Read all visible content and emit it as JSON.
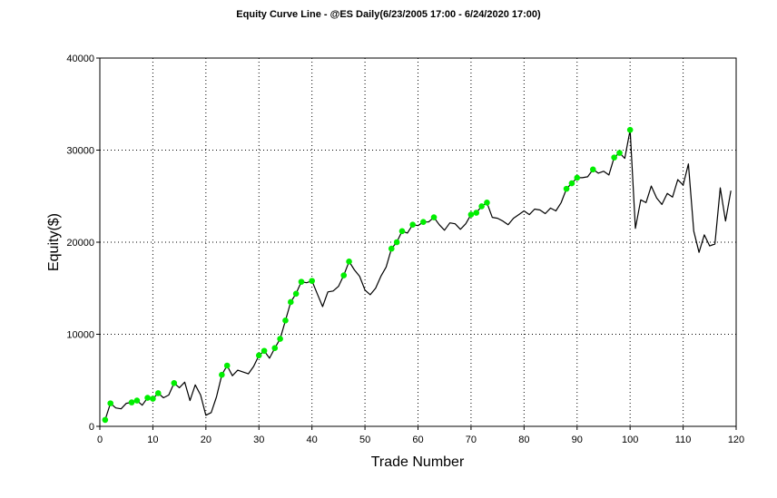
{
  "title": "Equity Curve Line - @ES Daily(6/23/2005 17:00 - 6/24/2020 17:00)",
  "chart_data": {
    "type": "line",
    "title": "Equity Curve Line - @ES Daily(6/23/2005 17:00 - 6/24/2020 17:00)",
    "xlabel": "Trade Number",
    "ylabel": "Equity($)",
    "xlim": [
      0,
      120
    ],
    "ylim": [
      0,
      40000
    ],
    "x_ticks": [
      0,
      10,
      20,
      30,
      40,
      50,
      60,
      70,
      80,
      90,
      100,
      110,
      120
    ],
    "y_ticks": [
      0,
      10000,
      20000,
      30000,
      40000
    ],
    "x_tick_labels": [
      "0",
      "10",
      "20",
      "30",
      "40",
      "50",
      "60",
      "70",
      "80",
      "90",
      "100",
      "110",
      "120"
    ],
    "y_tick_labels": [
      "0",
      "10000",
      "20000",
      "30000",
      "40000"
    ],
    "grid": true,
    "line_color": "#000000",
    "marker_color": "#00ee00",
    "series": [
      {
        "x": [
          1,
          2,
          3,
          4,
          5,
          6,
          7,
          8,
          9,
          10,
          11,
          12,
          13,
          14,
          15,
          16,
          17,
          18,
          19,
          20,
          21,
          22,
          23,
          24,
          25,
          26,
          27,
          28,
          29,
          30,
          31,
          32,
          33,
          34,
          35,
          36,
          37,
          38,
          39,
          40,
          41,
          42,
          43,
          44,
          45,
          46,
          47,
          48,
          49,
          50,
          51,
          52,
          53,
          54,
          55,
          56,
          57,
          58,
          59,
          60,
          61,
          62,
          63,
          64,
          65,
          66,
          67,
          68,
          69,
          70,
          71,
          72,
          73,
          74,
          75,
          76,
          77,
          78,
          79,
          80,
          81,
          82,
          83,
          84,
          85,
          86,
          87,
          88,
          89,
          90,
          91,
          92,
          93,
          94,
          95,
          96,
          97,
          98,
          99,
          100,
          101,
          102,
          103,
          104,
          105,
          106,
          107,
          108,
          109,
          110,
          111,
          112,
          113,
          114,
          115,
          116,
          117,
          118,
          119
        ],
        "y": [
          700,
          2500,
          2000,
          1900,
          2500,
          2600,
          2800,
          2300,
          3100,
          3000,
          3600,
          3100,
          3400,
          4700,
          4200,
          4800,
          2800,
          4500,
          3400,
          1200,
          1500,
          3200,
          5600,
          6600,
          5500,
          6100,
          5900,
          5700,
          6500,
          7700,
          8200,
          7400,
          8500,
          9500,
          11500,
          13500,
          14400,
          15700,
          15600,
          15800,
          14400,
          13000,
          14600,
          14700,
          15200,
          16400,
          17900,
          17000,
          16300,
          14800,
          14300,
          15000,
          16300,
          17300,
          19300,
          20000,
          21200,
          21000,
          21900,
          21800,
          22200,
          22200,
          22700,
          21900,
          21300,
          22100,
          22000,
          21400,
          22000,
          23000,
          23200,
          23900,
          24300,
          22700,
          22600,
          22300,
          21900,
          22600,
          23000,
          23400,
          23000,
          23600,
          23500,
          23100,
          23700,
          23400,
          24300,
          25800,
          26400,
          27000,
          27000,
          27100,
          27900,
          27500,
          27700,
          27300,
          29200,
          29700,
          29100,
          32200,
          21500,
          24600,
          24300,
          26100,
          24800,
          24100,
          25300,
          24900,
          26800,
          26200,
          28500,
          21200,
          18900,
          20800,
          19600,
          19800,
          25900,
          22300,
          25600
        ],
        "markers": [
          1,
          2,
          6,
          7,
          9,
          10,
          11,
          14,
          23,
          24,
          30,
          31,
          33,
          34,
          35,
          36,
          37,
          38,
          40,
          46,
          47,
          55,
          56,
          57,
          59,
          61,
          63,
          70,
          71,
          72,
          73,
          88,
          89,
          90,
          93,
          97,
          98,
          100
        ]
      }
    ]
  }
}
